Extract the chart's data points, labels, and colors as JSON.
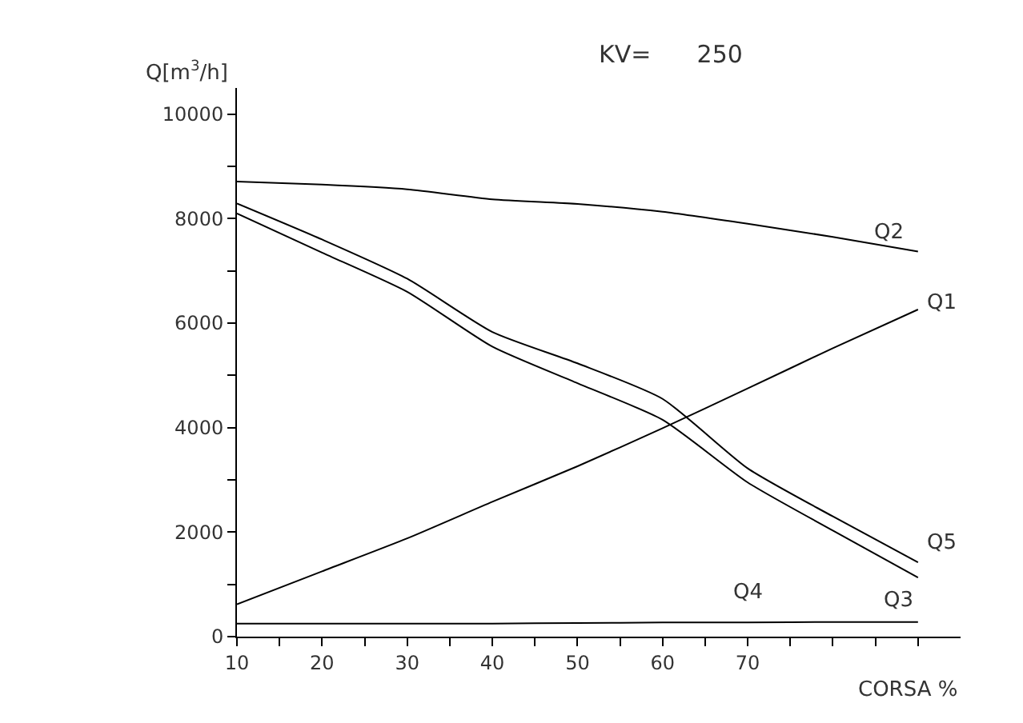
{
  "chart_data": {
    "type": "line",
    "xlabel": "CORSA %",
    "ylabel": "Q[m$^{3}$/h]",
    "annotations": [
      "KV=      250"
    ],
    "x": [
      10,
      20,
      30,
      40,
      50,
      60,
      70,
      80,
      90
    ],
    "series": [
      {
        "name": "Q1",
        "color": "#000000",
        "values": [
          620,
          1250,
          1880,
          2580,
          3260,
          3990,
          4750,
          5520,
          6260
        ]
      },
      {
        "name": "Q2",
        "color": "#000000",
        "values": [
          8710,
          8650,
          8560,
          8370,
          8280,
          8130,
          7900,
          7650,
          7370
        ]
      },
      {
        "name": "Q3",
        "color": "#000000",
        "values": [
          8100,
          7350,
          6600,
          5550,
          4850,
          4150,
          2950,
          2030,
          1130
        ]
      },
      {
        "name": "Q4",
        "color": "#000000",
        "values": [
          250,
          250,
          250,
          250,
          260,
          270,
          270,
          280,
          280
        ]
      },
      {
        "name": "Q5",
        "color": "#000000",
        "values": [
          8290,
          7600,
          6850,
          5830,
          5230,
          4550,
          3220,
          2300,
          1420
        ]
      }
    ],
    "xlim": [
      10,
      95
    ],
    "ylim": [
      0,
      10500
    ],
    "xticks": [
      10,
      {
        "value": 15,
        "label": null
      },
      20,
      {
        "value": 25,
        "label": null
      },
      30,
      {
        "value": 35,
        "label": null
      },
      40,
      {
        "value": 45,
        "label": null
      },
      50,
      {
        "value": 55,
        "label": null
      },
      60,
      {
        "value": 65,
        "label": null
      },
      70,
      {
        "value": 75,
        "label": null
      },
      {
        "value": 80,
        "label": null
      },
      {
        "value": 85,
        "label": null
      },
      {
        "value": 90,
        "label": null
      }
    ],
    "yticks": [
      0,
      {
        "value": 1000,
        "label": null
      },
      2000,
      {
        "value": 3000,
        "label": null
      },
      4000,
      {
        "value": 5000,
        "label": null
      },
      6000,
      {
        "value": 7000,
        "label": null
      },
      8000,
      {
        "value": 9000,
        "label": null
      },
      10000
    ],
    "legend": false,
    "marker": "none",
    "line_style": "solid"
  }
}
